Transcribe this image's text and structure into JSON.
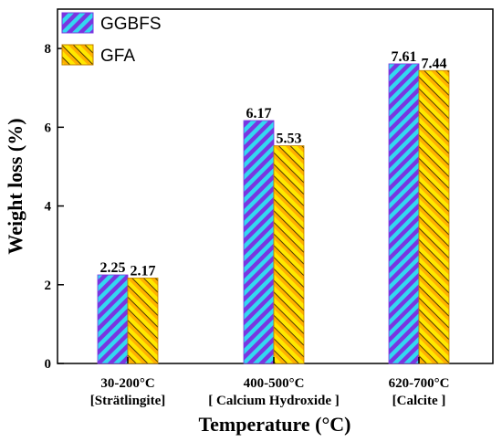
{
  "chart_data": {
    "type": "bar",
    "categories": [
      [
        "30-200°C",
        "[Strätlingite]"
      ],
      [
        "400-500°C",
        "[ Calcium Hydroxide ]"
      ],
      [
        "620-700°C",
        "[Calcite ]"
      ]
    ],
    "series": [
      {
        "name": "GGBFS",
        "values": [
          2.25,
          6.17,
          7.61
        ],
        "labels": [
          "2.25",
          "6.17",
          "7.61"
        ],
        "colors": [
          "#33d8f0",
          "#7a35e0"
        ]
      },
      {
        "name": "GFA",
        "values": [
          2.17,
          5.53,
          7.44
        ],
        "labels": [
          "2.17",
          "5.53",
          "7.44"
        ],
        "colors": [
          "#ffb000",
          "#ffe800"
        ]
      }
    ],
    "xlabel": "Temperature (°C)",
    "ylabel": "Weight loss (%)",
    "ylim": [
      0,
      9
    ],
    "yticks": [
      0,
      2,
      4,
      6,
      8
    ],
    "legend_position": "top-left",
    "grid": false
  }
}
